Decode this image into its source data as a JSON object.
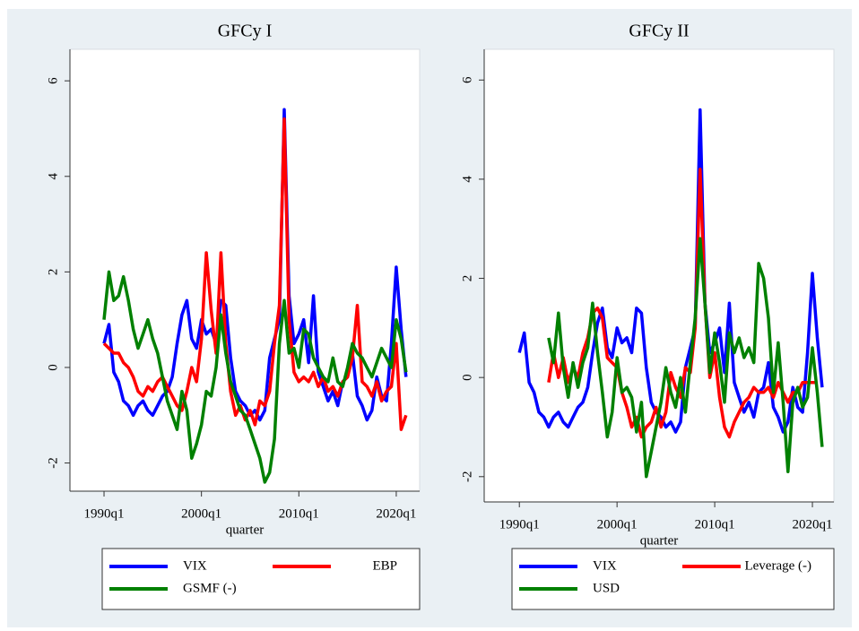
{
  "chart_data": [
    {
      "type": "line",
      "title": "GFCy I",
      "x_label": "quarter",
      "x": [
        1990,
        1990.5,
        1991,
        1991.5,
        1992,
        1992.5,
        1993,
        1993.5,
        1994,
        1994.5,
        1995,
        1995.5,
        1996,
        1996.5,
        1997,
        1997.5,
        1998,
        1998.5,
        1999,
        1999.5,
        2000,
        2000.5,
        2001,
        2001.5,
        2002,
        2002.5,
        2003,
        2003.5,
        2004,
        2004.5,
        2005,
        2005.5,
        2006,
        2006.5,
        2007,
        2007.5,
        2008,
        2008.5,
        2009,
        2009.5,
        2010,
        2010.5,
        2011,
        2011.5,
        2012,
        2012.5,
        2013,
        2013.5,
        2014,
        2014.5,
        2015,
        2015.5,
        2016,
        2016.5,
        2017,
        2017.5,
        2018,
        2018.5,
        2019,
        2019.5,
        2020,
        2020.5,
        2021
      ],
      "series": [
        {
          "name": "VIX",
          "color": "#0000ff",
          "values": [
            0.5,
            0.9,
            -0.1,
            -0.3,
            -0.7,
            -0.8,
            -1.0,
            -0.8,
            -0.7,
            -0.9,
            -1.0,
            -0.8,
            -0.6,
            -0.5,
            -0.2,
            0.5,
            1.1,
            1.4,
            0.6,
            0.4,
            1.0,
            0.7,
            0.8,
            0.5,
            1.4,
            1.3,
            0.2,
            -0.5,
            -0.7,
            -0.8,
            -1.0,
            -0.9,
            -1.1,
            -0.9,
            0.2,
            0.6,
            1.0,
            5.4,
            1.5,
            0.5,
            0.7,
            1.0,
            0.1,
            1.5,
            -0.1,
            -0.4,
            -0.7,
            -0.5,
            -0.8,
            -0.3,
            -0.2,
            0.3,
            -0.6,
            -0.8,
            -1.1,
            -0.9,
            -0.2,
            -0.6,
            -0.7,
            0.5,
            2.1,
            0.8,
            -0.2
          ]
        },
        {
          "name": "EBP",
          "color": "#ff0000",
          "values": [
            0.5,
            0.4,
            0.3,
            0.3,
            0.1,
            0.0,
            -0.2,
            -0.5,
            -0.6,
            -0.4,
            -0.5,
            -0.3,
            -0.2,
            -0.4,
            -0.6,
            -0.8,
            -0.9,
            -0.5,
            0.0,
            -0.3,
            0.6,
            2.4,
            1.2,
            0.3,
            2.4,
            0.5,
            -0.5,
            -1.0,
            -0.8,
            -1.1,
            -0.9,
            -1.2,
            -0.7,
            -0.8,
            -0.5,
            0.5,
            1.3,
            5.2,
            1.0,
            -0.1,
            -0.3,
            -0.2,
            -0.3,
            -0.1,
            -0.4,
            -0.2,
            -0.5,
            -0.4,
            -0.6,
            -0.3,
            -0.2,
            0.2,
            1.3,
            -0.3,
            -0.4,
            -0.6,
            -0.3,
            -0.7,
            -0.5,
            -0.4,
            0.5,
            -1.3,
            -1.0
          ]
        },
        {
          "name": "GSMF (-)",
          "color": "#008000",
          "values": [
            1.0,
            2.0,
            1.4,
            1.5,
            1.9,
            1.4,
            0.8,
            0.4,
            0.7,
            1.0,
            0.6,
            0.3,
            -0.2,
            -0.7,
            -1.0,
            -1.3,
            -0.5,
            -0.9,
            -1.9,
            -1.6,
            -1.2,
            -0.5,
            -0.6,
            0.0,
            1.1,
            0.3,
            -0.3,
            -0.6,
            -0.9,
            -1.0,
            -1.3,
            -1.6,
            -1.9,
            -2.4,
            -2.2,
            -1.5,
            0.5,
            1.4,
            0.3,
            0.4,
            0.0,
            0.8,
            0.7,
            0.2,
            0.0,
            -0.2,
            -0.3,
            0.2,
            -0.3,
            -0.4,
            0.0,
            0.5,
            0.3,
            0.2,
            0.0,
            -0.2,
            0.1,
            0.4,
            0.2,
            0.0,
            1.0,
            0.6,
            -0.1
          ]
        }
      ],
      "xlim": [
        1986.5,
        2022.4
      ],
      "xticks": [
        {
          "value": 1990,
          "label": "1990q1"
        },
        {
          "value": 2000,
          "label": "2000q1"
        },
        {
          "value": 2010,
          "label": "2010q1"
        },
        {
          "value": 2020,
          "label": "2020q1"
        }
      ],
      "ylim": [
        -2.59,
        6.66
      ],
      "yticks": [
        -2,
        0,
        2,
        4,
        6
      ]
    },
    {
      "type": "line",
      "title": "GFCy II",
      "x_label": "quarter",
      "x": [
        1990,
        1990.5,
        1991,
        1991.5,
        1992,
        1992.5,
        1993,
        1993.5,
        1994,
        1994.5,
        1995,
        1995.5,
        1996,
        1996.5,
        1997,
        1997.5,
        1998,
        1998.5,
        1999,
        1999.5,
        2000,
        2000.5,
        2001,
        2001.5,
        2002,
        2002.5,
        2003,
        2003.5,
        2004,
        2004.5,
        2005,
        2005.5,
        2006,
        2006.5,
        2007,
        2007.5,
        2008,
        2008.5,
        2009,
        2009.5,
        2010,
        2010.5,
        2011,
        2011.5,
        2012,
        2012.5,
        2013,
        2013.5,
        2014,
        2014.5,
        2015,
        2015.5,
        2016,
        2016.5,
        2017,
        2017.5,
        2018,
        2018.5,
        2019,
        2019.5,
        2020,
        2020.5,
        2021
      ],
      "series": [
        {
          "name": "VIX",
          "color": "#0000ff",
          "values": [
            0.5,
            0.9,
            -0.1,
            -0.3,
            -0.7,
            -0.8,
            -1.0,
            -0.8,
            -0.7,
            -0.9,
            -1.0,
            -0.8,
            -0.6,
            -0.5,
            -0.2,
            0.5,
            1.1,
            1.4,
            0.6,
            0.4,
            1.0,
            0.7,
            0.8,
            0.5,
            1.4,
            1.3,
            0.2,
            -0.5,
            -0.7,
            -0.8,
            -1.0,
            -0.9,
            -1.1,
            -0.9,
            0.2,
            0.6,
            1.0,
            5.4,
            1.5,
            0.5,
            0.7,
            1.0,
            0.1,
            1.5,
            -0.1,
            -0.4,
            -0.7,
            -0.5,
            -0.8,
            -0.3,
            -0.2,
            0.3,
            -0.6,
            -0.8,
            -1.1,
            -0.9,
            -0.2,
            -0.6,
            -0.7,
            0.5,
            2.1,
            0.8,
            -0.2
          ]
        },
        {
          "name": "Leverage (-)",
          "color": "#ff0000",
          "values": [
            null,
            null,
            null,
            null,
            null,
            null,
            -0.1,
            0.5,
            0.0,
            0.4,
            -0.1,
            0.2,
            0.0,
            0.5,
            0.8,
            1.3,
            1.4,
            1.2,
            0.4,
            0.3,
            0.2,
            -0.3,
            -0.6,
            -1.0,
            -0.8,
            -1.2,
            -1.0,
            -0.9,
            -0.6,
            -1.0,
            -0.7,
            0.1,
            -0.2,
            -0.4,
            0.2,
            0.1,
            1.0,
            4.2,
            1.5,
            0.0,
            0.5,
            -0.4,
            -1.0,
            -1.2,
            -0.9,
            -0.7,
            -0.5,
            -0.4,
            -0.2,
            -0.3,
            -0.3,
            -0.2,
            -0.4,
            -0.1,
            -0.3,
            -0.5,
            -0.3,
            -0.3,
            -0.1,
            -0.1,
            -0.1,
            -0.1,
            null
          ]
        },
        {
          "name": "USD",
          "color": "#008000",
          "values": [
            null,
            null,
            null,
            null,
            null,
            null,
            0.8,
            0.3,
            1.3,
            0.2,
            -0.4,
            0.3,
            -0.2,
            0.3,
            0.6,
            1.5,
            0.5,
            -0.3,
            -1.2,
            -0.7,
            0.4,
            -0.3,
            -0.2,
            -0.4,
            -1.1,
            -0.5,
            -2.0,
            -1.5,
            -1.0,
            -0.5,
            0.2,
            -0.3,
            -0.6,
            0.0,
            -0.7,
            0.3,
            1.2,
            2.8,
            1.5,
            0.1,
            0.9,
            0.3,
            -0.5,
            0.9,
            0.5,
            0.8,
            0.4,
            0.6,
            0.3,
            2.3,
            2.0,
            1.2,
            -0.3,
            0.7,
            -0.5,
            -1.9,
            -0.5,
            -0.2,
            -0.6,
            -0.4,
            0.6,
            -0.3,
            -1.4
          ]
        }
      ],
      "xlim": [
        1986.4,
        2022.2
      ],
      "xticks": [
        {
          "value": 1990,
          "label": "1990q1"
        },
        {
          "value": 2000,
          "label": "2000q1"
        },
        {
          "value": 2010,
          "label": "2010q1"
        },
        {
          "value": 2020,
          "label": "2020q1"
        }
      ],
      "ylim": [
        -2.51,
        6.62
      ],
      "yticks": [
        -2,
        0,
        2,
        4,
        6
      ]
    }
  ]
}
